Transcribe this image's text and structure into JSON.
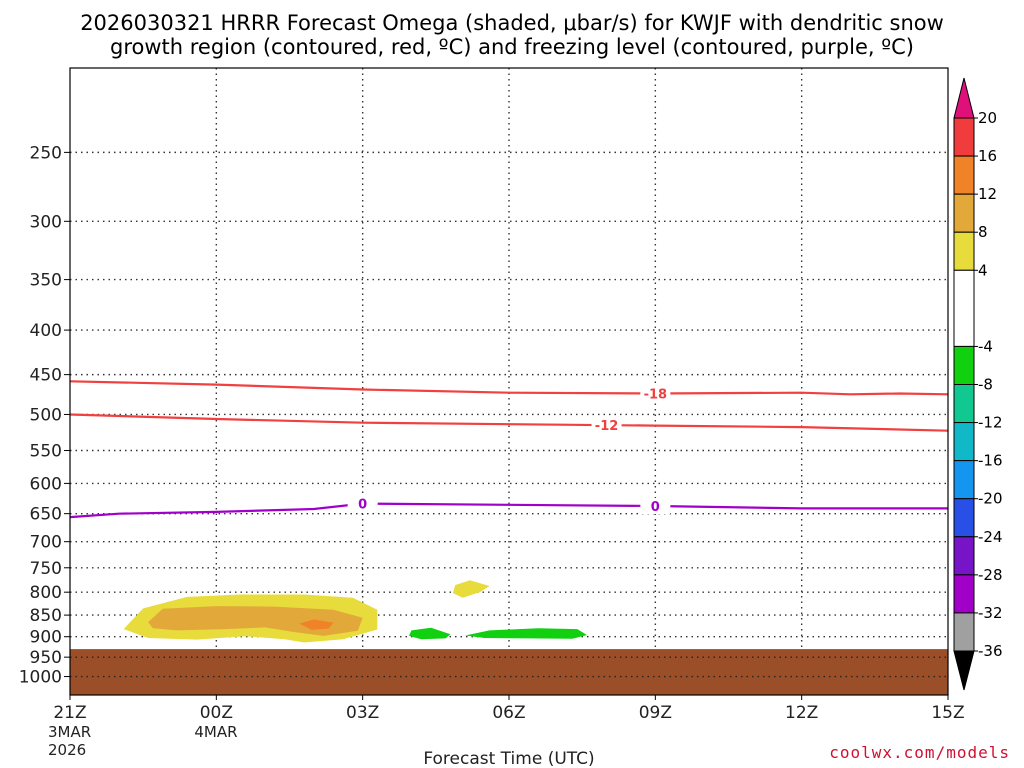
{
  "chart_data": {
    "type": "heatmap",
    "title_line1": "2026030321 HRRR Forecast Omega (shaded, μbar/s) for KWJF with dendritic snow",
    "title_line2": "growth region (contoured, red, ºC) and freezing level (contoured, purple, ºC)",
    "xlabel": "Forecast Time (UTC)",
    "credit": "coolwx.com/models",
    "x_range_hours": [
      0,
      18
    ],
    "x_ticks": [
      {
        "hour": 0,
        "label": "21Z",
        "sub1": "3MAR",
        "sub2": "2026"
      },
      {
        "hour": 3,
        "label": "00Z",
        "sub1": "4MAR",
        "sub2": ""
      },
      {
        "hour": 6,
        "label": "03Z",
        "sub1": "",
        "sub2": ""
      },
      {
        "hour": 9,
        "label": "06Z",
        "sub1": "",
        "sub2": ""
      },
      {
        "hour": 12,
        "label": "09Z",
        "sub1": "",
        "sub2": ""
      },
      {
        "hour": 15,
        "label": "12Z",
        "sub1": "",
        "sub2": ""
      },
      {
        "hour": 18,
        "label": "15Z",
        "sub1": "",
        "sub2": ""
      }
    ],
    "y_levels_hpa": [
      250,
      300,
      350,
      400,
      450,
      500,
      550,
      600,
      650,
      700,
      750,
      800,
      850,
      900,
      950,
      1000
    ],
    "y_range_hpa": [
      200,
      1050
    ],
    "surface_pressure_hpa": 930,
    "surface_color": "#9b4f28",
    "dgz_contours": [
      {
        "label": "-18",
        "label_hour": 12,
        "color": "#f04040",
        "points": [
          [
            0,
            458
          ],
          [
            3,
            462
          ],
          [
            6,
            468
          ],
          [
            9,
            472
          ],
          [
            12,
            473
          ],
          [
            15,
            472
          ],
          [
            16,
            474
          ],
          [
            17,
            473
          ],
          [
            18,
            474
          ]
        ]
      },
      {
        "label": "-12",
        "label_hour": 11,
        "color": "#f04040",
        "points": [
          [
            0,
            500
          ],
          [
            3,
            506
          ],
          [
            6,
            511
          ],
          [
            9,
            513
          ],
          [
            12,
            515
          ],
          [
            15,
            517
          ],
          [
            18,
            522
          ]
        ]
      }
    ],
    "freezing_level": {
      "label": "0",
      "label_hours": [
        6,
        12
      ],
      "color": "#a000c8",
      "points": [
        [
          0,
          656
        ],
        [
          1,
          650
        ],
        [
          3,
          647
        ],
        [
          5,
          642
        ],
        [
          6,
          633
        ],
        [
          9,
          635
        ],
        [
          12,
          637
        ],
        [
          15,
          641
        ],
        [
          18,
          641
        ]
      ]
    },
    "omega_regions": [
      {
        "value_range": "4 to 8",
        "color": "#e8dc3c",
        "points": [
          [
            1.2,
            870
          ],
          [
            1.5,
            835
          ],
          [
            2.4,
            810
          ],
          [
            3.5,
            805
          ],
          [
            4.8,
            805
          ],
          [
            5.8,
            812
          ],
          [
            6.3,
            838
          ],
          [
            6.3,
            883
          ],
          [
            5.6,
            906
          ],
          [
            4.8,
            914
          ],
          [
            4.4,
            906
          ],
          [
            3.6,
            899
          ],
          [
            2.6,
            907
          ],
          [
            1.6,
            903
          ],
          [
            1.1,
            882
          ]
        ]
      },
      {
        "value_range": "8 to 12",
        "color": "#e3a83a",
        "points": [
          [
            1.6,
            866
          ],
          [
            1.9,
            836
          ],
          [
            3.0,
            830
          ],
          [
            4.2,
            831
          ],
          [
            5.4,
            838
          ],
          [
            6.0,
            856
          ],
          [
            5.9,
            886
          ],
          [
            5.2,
            898
          ],
          [
            4.6,
            889
          ],
          [
            4.0,
            878
          ],
          [
            3.2,
            882
          ],
          [
            2.2,
            885
          ],
          [
            1.7,
            880
          ]
        ]
      },
      {
        "value_range": "12 to 16",
        "color": "#f08228",
        "points": [
          [
            4.7,
            869
          ],
          [
            5.0,
            860
          ],
          [
            5.4,
            867
          ],
          [
            5.3,
            881
          ],
          [
            4.95,
            884
          ]
        ]
      },
      {
        "value_range": "4 to 8",
        "color": "#e8dc3c",
        "points": [
          [
            7.9,
            785
          ],
          [
            8.2,
            775
          ],
          [
            8.6,
            787
          ],
          [
            8.4,
            800
          ],
          [
            8.05,
            812
          ],
          [
            7.85,
            802
          ]
        ]
      },
      {
        "value_range": "-4 to -8",
        "color": "#10d010",
        "points": [
          [
            7.0,
            885
          ],
          [
            7.4,
            879
          ],
          [
            7.8,
            894
          ],
          [
            7.7,
            904
          ],
          [
            7.2,
            906
          ],
          [
            6.95,
            898
          ]
        ]
      },
      {
        "value_range": "-4 to -8",
        "color": "#10d010",
        "points": [
          [
            8.1,
            897
          ],
          [
            8.6,
            885
          ],
          [
            9.6,
            880
          ],
          [
            10.4,
            882
          ],
          [
            10.6,
            896
          ],
          [
            10.3,
            905
          ],
          [
            9.4,
            904
          ],
          [
            8.5,
            903
          ]
        ]
      }
    ],
    "colorbar": {
      "ticks": [
        "20",
        "16",
        "12",
        "8",
        "4",
        "-4",
        "-8",
        "-12",
        "-16",
        "-20",
        "-24",
        "-28",
        "-32",
        "-36"
      ],
      "segments": [
        {
          "from": 16,
          "to": 20,
          "color": "#f03c3c"
        },
        {
          "from": 12,
          "to": 16,
          "color": "#f08228"
        },
        {
          "from": 8,
          "to": 12,
          "color": "#e3a83a"
        },
        {
          "from": 4,
          "to": 8,
          "color": "#e8dc3c"
        },
        {
          "from": -4,
          "to": 4,
          "color": "#ffffff"
        },
        {
          "from": -8,
          "to": -4,
          "color": "#10d010"
        },
        {
          "from": -12,
          "to": -8,
          "color": "#10c890"
        },
        {
          "from": -16,
          "to": -12,
          "color": "#10b8c8"
        },
        {
          "from": -20,
          "to": -16,
          "color": "#1496f0"
        },
        {
          "from": -24,
          "to": -20,
          "color": "#2850e6"
        },
        {
          "from": -28,
          "to": -24,
          "color": "#7814c8"
        },
        {
          "from": -32,
          "to": -28,
          "color": "#a000c8"
        },
        {
          "from": -36,
          "to": -32,
          "color": "#a0a0a0"
        }
      ],
      "top_arrow_color": "#e0107a",
      "bottom_arrow_color": "#000000"
    }
  }
}
